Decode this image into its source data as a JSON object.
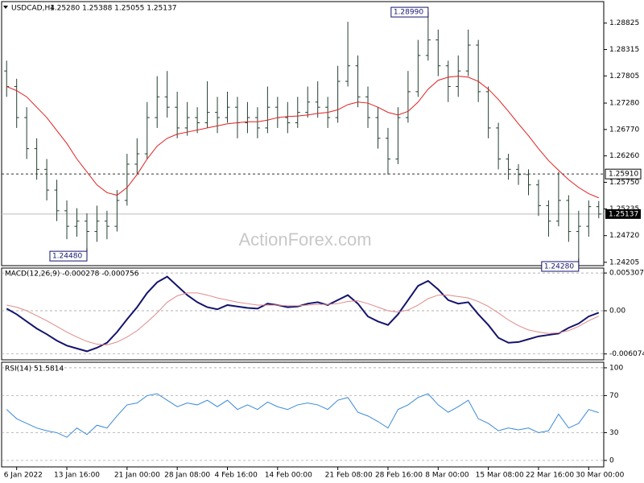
{
  "chart_data": [
    {
      "type": "ohlc",
      "symbol": "USDCAD,H4",
      "quote": "1.25280 1.25388 1.25055 1.25137",
      "watermark": "ActionForex.com",
      "color": "#23402f",
      "categories": [
        null,
        "6 Jan 2022",
        null,
        null,
        null,
        null,
        "13 Jan 16:00",
        null,
        null,
        null,
        null,
        null,
        "21 Jan 00:00",
        null,
        null,
        null,
        null,
        "28 Jan 08:00",
        null,
        null,
        null,
        null,
        "4 Feb 16:00",
        null,
        null,
        null,
        null,
        "14 Feb 00:00",
        null,
        null,
        null,
        null,
        null,
        "21 Feb 08:00",
        null,
        null,
        null,
        null,
        "28 Feb 16:00",
        null,
        null,
        null,
        null,
        "8 Mar 00:00",
        null,
        null,
        null,
        null,
        "15 Mar 08:00",
        null,
        null,
        null,
        null,
        "22 Mar 16:00",
        null,
        null,
        null,
        null,
        "30 Mar 00:00",
        null
      ],
      "open": [
        1.279,
        1.276,
        1.27,
        1.264,
        1.26,
        1.256,
        1.252,
        1.249,
        1.25,
        1.248,
        1.25,
        1.249,
        1.254,
        1.261,
        1.263,
        1.27,
        1.274,
        1.272,
        1.268,
        1.27,
        1.269,
        1.271,
        1.27,
        1.272,
        1.269,
        1.27,
        1.268,
        1.272,
        1.27,
        1.269,
        1.271,
        1.273,
        1.272,
        1.27,
        1.277,
        1.28,
        1.274,
        1.27,
        1.266,
        1.262,
        1.27,
        1.275,
        1.282,
        1.285,
        1.28,
        1.276,
        1.279,
        1.284,
        1.275,
        1.268,
        1.262,
        1.26,
        1.259,
        1.257,
        1.253,
        1.25,
        1.254,
        1.248,
        1.249,
        1.2528
      ],
      "high": [
        1.281,
        1.2775,
        1.272,
        1.266,
        1.262,
        1.258,
        1.254,
        1.2525,
        1.2515,
        1.253,
        1.252,
        1.256,
        1.263,
        1.266,
        1.273,
        1.278,
        1.279,
        1.275,
        1.273,
        1.272,
        1.277,
        1.274,
        1.275,
        1.274,
        1.273,
        1.272,
        1.276,
        1.274,
        1.273,
        1.274,
        1.276,
        1.277,
        1.274,
        1.28,
        1.2885,
        1.282,
        1.276,
        1.272,
        1.268,
        1.272,
        1.279,
        1.285,
        1.2899,
        1.287,
        1.281,
        1.282,
        1.287,
        1.285,
        1.276,
        1.269,
        1.263,
        1.261,
        1.26,
        1.258,
        1.254,
        1.2595,
        1.255,
        1.252,
        1.254,
        1.25388
      ],
      "low": [
        1.274,
        1.268,
        1.262,
        1.258,
        1.254,
        1.25,
        1.2465,
        1.247,
        1.2448,
        1.246,
        1.2465,
        1.248,
        1.253,
        1.259,
        1.262,
        1.268,
        1.27,
        1.266,
        1.2665,
        1.267,
        1.268,
        1.267,
        1.269,
        1.266,
        1.267,
        1.266,
        1.267,
        1.268,
        1.267,
        1.268,
        1.27,
        1.27,
        1.268,
        1.269,
        1.276,
        1.272,
        1.268,
        1.264,
        1.259,
        1.261,
        1.269,
        1.274,
        1.281,
        1.278,
        1.273,
        1.274,
        1.278,
        1.273,
        1.266,
        1.26,
        1.258,
        1.257,
        1.255,
        1.251,
        1.247,
        1.249,
        1.246,
        1.2428,
        1.247,
        1.25055
      ],
      "close": [
        1.276,
        1.27,
        1.264,
        1.26,
        1.256,
        1.252,
        1.249,
        1.25,
        1.248,
        1.25,
        1.249,
        1.254,
        1.261,
        1.263,
        1.27,
        1.274,
        1.272,
        1.268,
        1.27,
        1.269,
        1.271,
        1.27,
        1.272,
        1.269,
        1.27,
        1.268,
        1.272,
        1.27,
        1.269,
        1.271,
        1.273,
        1.272,
        1.27,
        1.277,
        1.28,
        1.274,
        1.27,
        1.266,
        1.262,
        1.27,
        1.275,
        1.282,
        1.285,
        1.28,
        1.276,
        1.279,
        1.284,
        1.275,
        1.268,
        1.262,
        1.26,
        1.259,
        1.257,
        1.253,
        1.25,
        1.254,
        1.248,
        1.249,
        1.2528,
        1.25137
      ],
      "ma": {
        "color": "#e02020",
        "values": [
          1.276,
          1.2752,
          1.274,
          1.272,
          1.27,
          1.2675,
          1.265,
          1.262,
          1.2595,
          1.257,
          1.2555,
          1.255,
          1.2565,
          1.259,
          1.262,
          1.2645,
          1.266,
          1.2668,
          1.2672,
          1.2676,
          1.268,
          1.2684,
          1.2688,
          1.269,
          1.2692,
          1.2692,
          1.2695,
          1.27,
          1.2702,
          1.2703,
          1.2705,
          1.2708,
          1.271,
          1.2715,
          1.2725,
          1.273,
          1.2728,
          1.272,
          1.271,
          1.2705,
          1.2712,
          1.273,
          1.2755,
          1.2772,
          1.2778,
          1.278,
          1.2778,
          1.277,
          1.2755,
          1.2735,
          1.2712,
          1.2688,
          1.2665,
          1.264,
          1.2617,
          1.2598,
          1.258,
          1.2565,
          1.2553,
          1.2545
        ]
      },
      "level": {
        "value": 1.2591,
        "label": "1.25910"
      },
      "current": 1.25137,
      "annotations": [
        {
          "value": 1.2448,
          "label": "1.24480"
        },
        {
          "value": 1.2899,
          "label": "1.28990"
        },
        {
          "value": 1.2428,
          "label": "1.24280"
        }
      ],
      "ylim": [
        1.2414,
        1.2924
      ],
      "yticks": [
        1.28825,
        1.28315,
        1.27805,
        {
          "value": 1.2728,
          "label": "1.27280"
        },
        {
          "value": 1.2677,
          "label": "1.26770"
        },
        {
          "value": 1.2626,
          "label": "1.26260"
        },
        {
          "value": 1.2575,
          "label": "1.25750"
        },
        1.25235,
        {
          "value": 1.2472,
          "label": "1.24720"
        },
        1.24205
      ]
    },
    {
      "type": "line",
      "title": "MACD(12,26,9) -0.000278 -0.000756",
      "grid": true,
      "series": [
        {
          "color": "#14146e",
          "values": [
            0.0003,
            -0.0005,
            -0.0015,
            -0.0025,
            -0.0033,
            -0.0042,
            -0.0049,
            -0.0053,
            -0.0057,
            -0.0052,
            -0.0045,
            -0.003,
            -0.0012,
            0.0005,
            0.0025,
            0.004,
            0.0048,
            0.0035,
            0.0022,
            0.0012,
            0.0005,
            0.0002,
            0.0008,
            0.0006,
            0.0004,
            0.0003,
            0.001,
            0.0008,
            0.0005,
            0.0006,
            0.001,
            0.0012,
            0.0008,
            0.0015,
            0.0022,
            0.001,
            -0.0008,
            -0.0015,
            -0.002,
            -0.0005,
            0.0015,
            0.0035,
            0.0042,
            0.003,
            0.0015,
            0.001,
            0.0012,
            -0.0005,
            -0.002,
            -0.0038,
            -0.0045,
            -0.0044,
            -0.004,
            -0.0036,
            -0.0034,
            -0.0032,
            -0.0024,
            -0.0018,
            -0.0008,
            -0.000278
          ]
        },
        {
          "color": "#e08a8a",
          "values": [
            0.0008,
            0.0005,
            0.0,
            -0.0007,
            -0.0014,
            -0.0022,
            -0.003,
            -0.0037,
            -0.0043,
            -0.0047,
            -0.0048,
            -0.0044,
            -0.0037,
            -0.0028,
            -0.0016,
            -0.0003,
            0.0012,
            0.0021,
            0.0025,
            0.0025,
            0.0022,
            0.0018,
            0.0015,
            0.0012,
            0.001,
            0.0008,
            0.0008,
            0.0008,
            0.0007,
            0.0007,
            0.0008,
            0.0009,
            0.0009,
            0.001,
            0.0013,
            0.0014,
            0.001,
            0.0005,
            0.0,
            -0.0002,
            0.0001,
            0.0008,
            0.0017,
            0.0022,
            0.0022,
            0.002,
            0.0018,
            0.0013,
            0.0006,
            -0.0003,
            -0.0013,
            -0.0021,
            -0.0027,
            -0.003,
            -0.0032,
            -0.0031,
            -0.0028,
            -0.0022,
            -0.0014,
            -0.000756
          ]
        }
      ],
      "ylim": [
        -0.0069,
        0.006
      ],
      "yticks": [
        0.005307,
        {
          "value": 0,
          "label": "0.00"
        },
        -0.006074
      ]
    },
    {
      "type": "line",
      "title": "RSI(14) 51.5814",
      "grid": true,
      "series": [
        {
          "color": "#3a8ad8",
          "values": [
            55,
            45,
            40,
            35,
            32,
            30,
            25,
            35,
            28,
            38,
            35,
            48,
            60,
            62,
            70,
            72,
            65,
            58,
            62,
            60,
            65,
            58,
            65,
            55,
            60,
            55,
            63,
            58,
            55,
            60,
            62,
            60,
            55,
            65,
            68,
            52,
            48,
            42,
            35,
            55,
            60,
            68,
            72,
            60,
            52,
            58,
            65,
            45,
            40,
            32,
            35,
            33,
            35,
            30,
            32,
            50,
            35,
            40,
            55,
            51.5814
          ]
        }
      ],
      "ylim": [
        -7,
        106
      ],
      "yticks": [
        100,
        70,
        30,
        0
      ]
    }
  ]
}
